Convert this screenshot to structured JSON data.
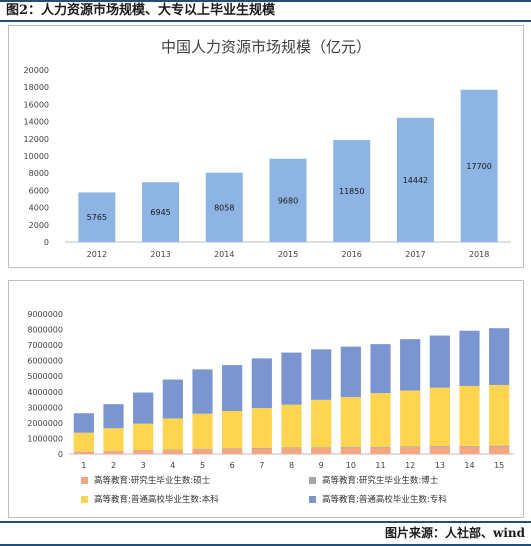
{
  "header": {
    "title": "图2：人力资源市场规模、大专以上毕业生规模"
  },
  "footer": {
    "source": "图片来源：人社部、wind"
  },
  "chart_data": [
    {
      "type": "bar",
      "title": "中国人力资源市场规模（亿元）",
      "categories": [
        "2012",
        "2013",
        "2014",
        "2015",
        "2016",
        "2017",
        "2018"
      ],
      "values": [
        5765,
        6945,
        8058,
        9680,
        11850,
        14442,
        17700
      ],
      "ylim": [
        0,
        20000
      ],
      "yticks": [
        0,
        2000,
        4000,
        6000,
        8000,
        10000,
        12000,
        14000,
        16000,
        18000,
        20000
      ],
      "grid": false,
      "bar_color": "#8db4e2"
    },
    {
      "type": "bar",
      "stacked": true,
      "categories": [
        "1",
        "2",
        "3",
        "4",
        "5",
        "6",
        "7",
        "8",
        "9",
        "10",
        "11",
        "12",
        "13",
        "14",
        "15"
      ],
      "ylim": [
        0,
        9000000
      ],
      "yticks": [
        0,
        1000000,
        2000000,
        3000000,
        4000000,
        5000000,
        6000000,
        7000000,
        8000000,
        9000000
      ],
      "legend_position": "bottom",
      "series": [
        {
          "name": "高等教育:研究生毕业生数:硕士",
          "color": "#f4a582",
          "values": [
            150000,
            180000,
            220000,
            250000,
            300000,
            320000,
            350000,
            370000,
            380000,
            400000,
            410000,
            430000,
            460000,
            470000,
            480000
          ]
        },
        {
          "name": "高等教育:研究生毕业生数:博士",
          "color": "#a6a6a6",
          "values": [
            20000,
            25000,
            30000,
            35000,
            40000,
            45000,
            48000,
            50000,
            50000,
            52000,
            53000,
            53000,
            55000,
            55000,
            58000
          ]
        },
        {
          "name": "高等教育:普通高校毕业生数:本科",
          "color": "#ffd54f",
          "values": [
            1200000,
            1450000,
            1700000,
            2000000,
            2250000,
            2400000,
            2550000,
            2750000,
            3050000,
            3200000,
            3450000,
            3600000,
            3750000,
            3850000,
            3900000
          ]
        },
        {
          "name": "高等教育:普通高校毕业生数:专科",
          "color": "#7b95d1",
          "values": [
            1250000,
            1550000,
            2000000,
            2500000,
            2850000,
            2950000,
            3200000,
            3350000,
            3250000,
            3250000,
            3150000,
            3300000,
            3350000,
            3550000,
            3650000
          ]
        }
      ]
    }
  ]
}
